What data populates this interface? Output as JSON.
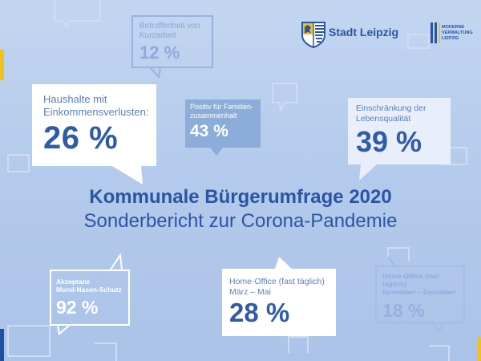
{
  "brand": {
    "city": "Stadt Leipzig",
    "program": "MODERNE\nVERWALTUNG\nLEIPZIG"
  },
  "headline": {
    "title": "Kommunale Bürgerumfrage 2020",
    "subtitle": "Sonderbericht zur Corona-Pandemie"
  },
  "stats": {
    "haushalte": {
      "label": "Haushalte mit\nEinkommensverlusten:",
      "value": "26 %"
    },
    "kurzarbeit": {
      "label": "Betroffenheit von\nKurzarbeit",
      "value": "12 %"
    },
    "familie": {
      "label": "Positiv für Familien-\nzusammenhalt",
      "value": "43 %"
    },
    "lebensqualitaet": {
      "label": "Einschränkung der\nLebensqualität",
      "value": "39 %"
    },
    "akzeptanz": {
      "label": "Akzeptanz\nMund-Nasen-Schutz",
      "value": "92 %"
    },
    "homeoffice_fruehjahr": {
      "label": "Home-Office (fast täglich)\nMärz – Mai",
      "value": "28 %"
    },
    "homeoffice_herbst": {
      "label": "Home-Office (fast täglich)\nNovember – Dezember",
      "value": "18 %"
    }
  },
  "colors": {
    "primary": "#2a55a3",
    "accent_yellow": "#f2c21a",
    "background": "#b5cbec"
  }
}
